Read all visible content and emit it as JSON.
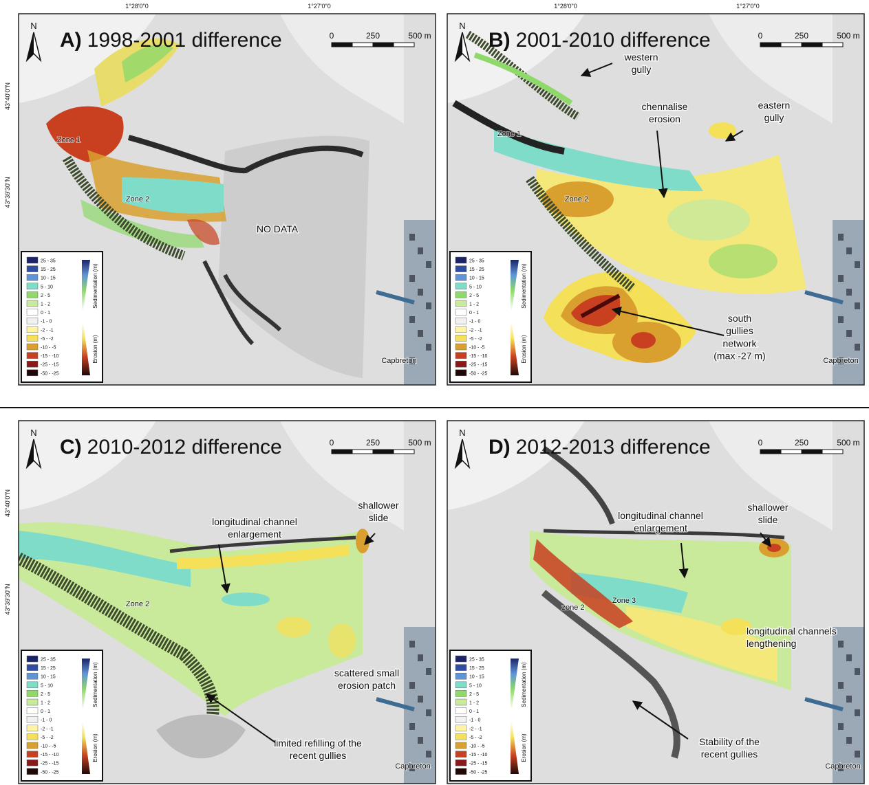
{
  "figure": {
    "north": "N",
    "scale_labels": [
      "0",
      "250",
      "500 m"
    ],
    "legend": {
      "sedimentation_label": "Sedimentation (m)",
      "erosion_label": "Erosion (m)",
      "classes": [
        {
          "label": "25 - 35",
          "color": "#1b2466"
        },
        {
          "label": "15 - 25",
          "color": "#2f4ea3"
        },
        {
          "label": "10 - 15",
          "color": "#5f95d6"
        },
        {
          "label": "5 - 10",
          "color": "#7fdcc9"
        },
        {
          "label": "2 - 5",
          "color": "#8fd86a"
        },
        {
          "label": "1 - 2",
          "color": "#c9e99b"
        },
        {
          "label": "0 - 1",
          "color": "#ffffff"
        },
        {
          "label": "-1 - 0",
          "color": "#f1f1f1"
        },
        {
          "label": "-2 - -1",
          "color": "#fff4a3"
        },
        {
          "label": "-5 - -2",
          "color": "#f5e05a"
        },
        {
          "label": "-10 - -5",
          "color": "#d9a030"
        },
        {
          "label": "-15 - -10",
          "color": "#c84020"
        },
        {
          "label": "-25 - -15",
          "color": "#8a1a1a"
        },
        {
          "label": "-50 - -25",
          "color": "#1e0808"
        }
      ]
    },
    "panels": [
      {
        "label": "A)",
        "title": "1998-2001 difference",
        "lon_labels": [
          "1°28'0\"0",
          "1°27'0\"0"
        ],
        "lat_labels": [
          "43°40'0\"N",
          "43°39'30\"N"
        ],
        "annotations": [
          {
            "lines": [
              "Zone 1"
            ]
          },
          {
            "lines": [
              "Zone 2"
            ]
          },
          {
            "lines": [
              "NO DATA"
            ]
          },
          {
            "lines": [
              "Capbreton"
            ]
          }
        ]
      },
      {
        "label": "B)",
        "title": "2001-2010 difference",
        "lon_labels": [
          "1°28'0\"0",
          "1°27'0\"0"
        ],
        "annotations": [
          {
            "lines": [
              "western",
              "gully"
            ]
          },
          {
            "lines": [
              "chennalise",
              "erosion"
            ]
          },
          {
            "lines": [
              "eastern",
              "gully"
            ]
          },
          {
            "lines": [
              "south",
              "gullies",
              "network",
              "(max -27 m)"
            ]
          },
          {
            "lines": [
              "Zone 1"
            ]
          },
          {
            "lines": [
              "Zone 2"
            ]
          },
          {
            "lines": [
              "Capbreton"
            ]
          }
        ]
      },
      {
        "label": "C)",
        "title": "2010-2012 difference",
        "lat_labels": [
          "43°40'0\"N",
          "43°39'30\"N"
        ],
        "annotations": [
          {
            "lines": [
              "shallower",
              "slide"
            ]
          },
          {
            "lines": [
              "longitudinal channel",
              "enlargement"
            ]
          },
          {
            "lines": [
              "Zone 2"
            ]
          },
          {
            "lines": [
              "scattered small",
              "erosion patch"
            ]
          },
          {
            "lines": [
              "limited refilling of the",
              "recent gullies"
            ]
          },
          {
            "lines": [
              "Capbreton"
            ]
          }
        ]
      },
      {
        "label": "D)",
        "title": "2012-2013 difference",
        "annotations": [
          {
            "lines": [
              "shallower",
              "slide"
            ]
          },
          {
            "lines": [
              "longitudinal channel",
              "enlargement"
            ]
          },
          {
            "lines": [
              "zone 2"
            ]
          },
          {
            "lines": [
              "Zone 3"
            ]
          },
          {
            "lines": [
              "longitudinal channels",
              "lengthening"
            ]
          },
          {
            "lines": [
              "Stability of the",
              "recent gullies"
            ]
          },
          {
            "lines": [
              "Capbreton"
            ]
          }
        ]
      }
    ]
  }
}
